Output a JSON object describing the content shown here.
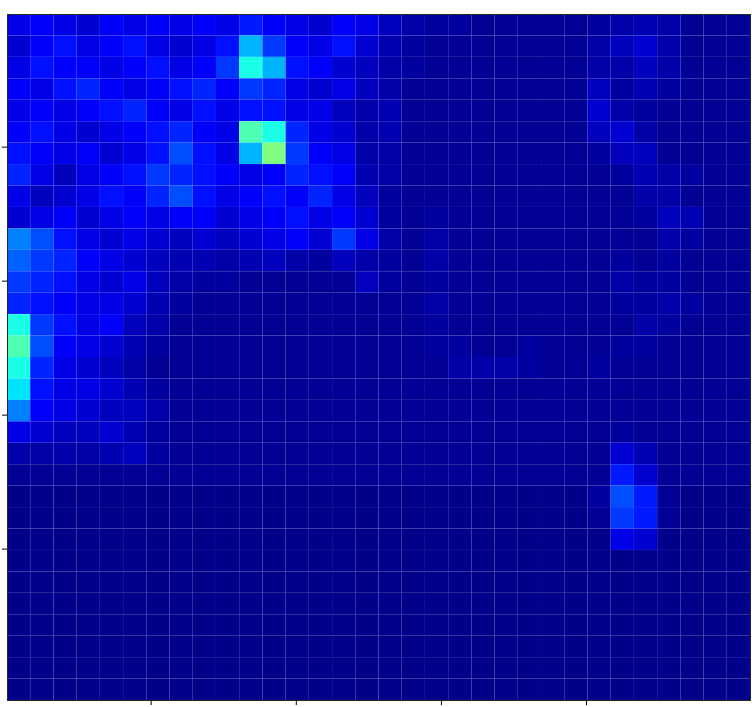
{
  "chart_data": {
    "type": "heatmap",
    "xlim": [
      0.5,
      256.5
    ],
    "ylim": [
      0.5,
      256.5
    ],
    "xticks": [
      50,
      100,
      150,
      200
    ],
    "yticks": [
      50,
      100,
      150,
      200
    ],
    "tick_labels": false,
    "clim": [
      0,
      1
    ],
    "cells": [
      [
        0.1,
        0.12,
        0.1,
        0.08,
        0.12,
        0.1,
        0.12,
        0.1,
        0.12,
        0.1,
        0.15,
        0.12,
        0.1,
        0.08,
        0.12,
        0.1,
        0.06,
        0.04,
        0.03,
        0.03,
        0.02,
        0.02,
        0.02,
        0.02,
        0.02,
        0.03,
        0.04,
        0.05,
        0.04,
        0.02,
        0.02,
        0.02
      ],
      [
        0.08,
        0.12,
        0.14,
        0.1,
        0.12,
        0.14,
        0.1,
        0.08,
        0.1,
        0.14,
        0.3,
        0.18,
        0.12,
        0.1,
        0.14,
        0.08,
        0.05,
        0.03,
        0.02,
        0.02,
        0.02,
        0.02,
        0.02,
        0.02,
        0.02,
        0.04,
        0.06,
        0.08,
        0.04,
        0.02,
        0.02,
        0.02
      ],
      [
        0.1,
        0.14,
        0.12,
        0.12,
        0.1,
        0.12,
        0.14,
        0.1,
        0.12,
        0.18,
        0.4,
        0.3,
        0.14,
        0.12,
        0.08,
        0.06,
        0.04,
        0.03,
        0.02,
        0.02,
        0.02,
        0.02,
        0.02,
        0.02,
        0.02,
        0.04,
        0.04,
        0.06,
        0.04,
        0.02,
        0.02,
        0.02
      ],
      [
        0.12,
        0.1,
        0.14,
        0.16,
        0.12,
        0.1,
        0.12,
        0.14,
        0.16,
        0.12,
        0.18,
        0.16,
        0.1,
        0.08,
        0.1,
        0.06,
        0.04,
        0.02,
        0.02,
        0.02,
        0.02,
        0.02,
        0.02,
        0.02,
        0.02,
        0.06,
        0.03,
        0.05,
        0.03,
        0.02,
        0.02,
        0.02
      ],
      [
        0.1,
        0.12,
        0.1,
        0.12,
        0.14,
        0.16,
        0.12,
        0.1,
        0.14,
        0.1,
        0.14,
        0.14,
        0.1,
        0.1,
        0.06,
        0.04,
        0.05,
        0.02,
        0.02,
        0.02,
        0.02,
        0.02,
        0.02,
        0.02,
        0.02,
        0.08,
        0.04,
        0.03,
        0.02,
        0.02,
        0.02,
        0.02
      ],
      [
        0.12,
        0.14,
        0.1,
        0.08,
        0.1,
        0.12,
        0.14,
        0.16,
        0.12,
        0.1,
        0.45,
        0.4,
        0.16,
        0.1,
        0.08,
        0.04,
        0.05,
        0.02,
        0.02,
        0.02,
        0.02,
        0.02,
        0.02,
        0.02,
        0.02,
        0.06,
        0.08,
        0.04,
        0.02,
        0.02,
        0.02,
        0.02
      ],
      [
        0.14,
        0.12,
        0.1,
        0.12,
        0.08,
        0.1,
        0.14,
        0.2,
        0.14,
        0.1,
        0.3,
        0.5,
        0.18,
        0.12,
        0.1,
        0.04,
        0.04,
        0.02,
        0.02,
        0.02,
        0.02,
        0.02,
        0.02,
        0.02,
        0.02,
        0.03,
        0.06,
        0.06,
        0.02,
        0.02,
        0.02,
        0.02
      ],
      [
        0.16,
        0.1,
        0.06,
        0.1,
        0.12,
        0.14,
        0.18,
        0.16,
        0.14,
        0.12,
        0.1,
        0.12,
        0.16,
        0.14,
        0.12,
        0.05,
        0.04,
        0.02,
        0.02,
        0.02,
        0.02,
        0.02,
        0.02,
        0.02,
        0.02,
        0.02,
        0.03,
        0.05,
        0.04,
        0.03,
        0.02,
        0.02
      ],
      [
        0.1,
        0.06,
        0.08,
        0.1,
        0.14,
        0.12,
        0.16,
        0.2,
        0.14,
        0.1,
        0.12,
        0.14,
        0.12,
        0.16,
        0.1,
        0.06,
        0.03,
        0.02,
        0.02,
        0.02,
        0.02,
        0.02,
        0.02,
        0.02,
        0.02,
        0.02,
        0.02,
        0.04,
        0.04,
        0.02,
        0.02,
        0.02
      ],
      [
        0.08,
        0.1,
        0.12,
        0.08,
        0.1,
        0.12,
        0.1,
        0.12,
        0.12,
        0.08,
        0.1,
        0.12,
        0.14,
        0.1,
        0.12,
        0.08,
        0.03,
        0.02,
        0.03,
        0.02,
        0.02,
        0.02,
        0.02,
        0.02,
        0.02,
        0.02,
        0.02,
        0.03,
        0.06,
        0.05,
        0.02,
        0.02
      ],
      [
        0.25,
        0.2,
        0.14,
        0.1,
        0.08,
        0.1,
        0.08,
        0.06,
        0.08,
        0.06,
        0.08,
        0.1,
        0.12,
        0.08,
        0.18,
        0.1,
        0.04,
        0.02,
        0.04,
        0.02,
        0.02,
        0.02,
        0.02,
        0.02,
        0.02,
        0.02,
        0.02,
        0.02,
        0.04,
        0.03,
        0.02,
        0.02
      ],
      [
        0.22,
        0.18,
        0.16,
        0.12,
        0.1,
        0.08,
        0.06,
        0.05,
        0.05,
        0.04,
        0.05,
        0.06,
        0.04,
        0.03,
        0.06,
        0.04,
        0.03,
        0.02,
        0.04,
        0.02,
        0.02,
        0.02,
        0.02,
        0.02,
        0.02,
        0.02,
        0.03,
        0.02,
        0.03,
        0.02,
        0.02,
        0.02
      ],
      [
        0.18,
        0.16,
        0.14,
        0.1,
        0.08,
        0.1,
        0.06,
        0.04,
        0.03,
        0.03,
        0.02,
        0.02,
        0.02,
        0.02,
        0.02,
        0.06,
        0.03,
        0.02,
        0.03,
        0.02,
        0.02,
        0.02,
        0.02,
        0.02,
        0.02,
        0.02,
        0.04,
        0.03,
        0.03,
        0.02,
        0.02,
        0.02
      ],
      [
        0.16,
        0.14,
        0.12,
        0.1,
        0.1,
        0.08,
        0.05,
        0.03,
        0.02,
        0.02,
        0.02,
        0.02,
        0.02,
        0.02,
        0.02,
        0.02,
        0.02,
        0.02,
        0.04,
        0.02,
        0.02,
        0.02,
        0.02,
        0.02,
        0.02,
        0.02,
        0.03,
        0.03,
        0.04,
        0.03,
        0.02,
        0.02
      ],
      [
        0.4,
        0.18,
        0.14,
        0.1,
        0.12,
        0.06,
        0.04,
        0.02,
        0.02,
        0.02,
        0.02,
        0.02,
        0.02,
        0.02,
        0.02,
        0.02,
        0.02,
        0.02,
        0.03,
        0.02,
        0.02,
        0.02,
        0.02,
        0.02,
        0.02,
        0.02,
        0.02,
        0.04,
        0.03,
        0.02,
        0.02,
        0.02
      ],
      [
        0.45,
        0.2,
        0.12,
        0.1,
        0.08,
        0.05,
        0.03,
        0.02,
        0.02,
        0.02,
        0.02,
        0.02,
        0.02,
        0.02,
        0.02,
        0.02,
        0.02,
        0.02,
        0.03,
        0.03,
        0.02,
        0.02,
        0.03,
        0.02,
        0.02,
        0.02,
        0.03,
        0.03,
        0.02,
        0.02,
        0.02,
        0.02
      ],
      [
        0.4,
        0.16,
        0.1,
        0.08,
        0.06,
        0.04,
        0.02,
        0.02,
        0.02,
        0.02,
        0.02,
        0.02,
        0.02,
        0.02,
        0.02,
        0.02,
        0.02,
        0.02,
        0.02,
        0.04,
        0.04,
        0.04,
        0.03,
        0.02,
        0.02,
        0.03,
        0.02,
        0.02,
        0.02,
        0.02,
        0.02,
        0.02
      ],
      [
        0.35,
        0.14,
        0.1,
        0.1,
        0.08,
        0.05,
        0.03,
        0.02,
        0.02,
        0.02,
        0.02,
        0.02,
        0.02,
        0.02,
        0.02,
        0.02,
        0.02,
        0.02,
        0.02,
        0.02,
        0.02,
        0.02,
        0.02,
        0.02,
        0.02,
        0.02,
        0.02,
        0.02,
        0.02,
        0.02,
        0.02,
        0.02
      ],
      [
        0.25,
        0.12,
        0.1,
        0.08,
        0.06,
        0.06,
        0.04,
        0.02,
        0.02,
        0.02,
        0.02,
        0.02,
        0.02,
        0.02,
        0.02,
        0.02,
        0.02,
        0.02,
        0.02,
        0.02,
        0.02,
        0.02,
        0.02,
        0.02,
        0.02,
        0.02,
        0.02,
        0.02,
        0.02,
        0.02,
        0.02,
        0.02
      ],
      [
        0.1,
        0.08,
        0.06,
        0.06,
        0.08,
        0.05,
        0.03,
        0.02,
        0.02,
        0.02,
        0.02,
        0.02,
        0.02,
        0.02,
        0.02,
        0.02,
        0.02,
        0.02,
        0.02,
        0.02,
        0.02,
        0.02,
        0.02,
        0.02,
        0.02,
        0.02,
        0.03,
        0.02,
        0.02,
        0.02,
        0.02,
        0.02
      ],
      [
        0.04,
        0.04,
        0.04,
        0.04,
        0.05,
        0.06,
        0.03,
        0.02,
        0.02,
        0.02,
        0.02,
        0.02,
        0.02,
        0.02,
        0.02,
        0.02,
        0.02,
        0.02,
        0.02,
        0.02,
        0.02,
        0.02,
        0.02,
        0.02,
        0.02,
        0.02,
        0.08,
        0.05,
        0.02,
        0.02,
        0.02,
        0.02
      ],
      [
        0.02,
        0.02,
        0.02,
        0.02,
        0.02,
        0.02,
        0.02,
        0.02,
        0.02,
        0.02,
        0.02,
        0.02,
        0.02,
        0.02,
        0.02,
        0.02,
        0.02,
        0.02,
        0.02,
        0.02,
        0.02,
        0.02,
        0.02,
        0.02,
        0.02,
        0.02,
        0.15,
        0.08,
        0.02,
        0.02,
        0.02,
        0.02
      ],
      [
        0.01,
        0.01,
        0.01,
        0.01,
        0.01,
        0.01,
        0.01,
        0.01,
        0.01,
        0.01,
        0.01,
        0.01,
        0.01,
        0.01,
        0.01,
        0.01,
        0.01,
        0.01,
        0.01,
        0.01,
        0.01,
        0.01,
        0.01,
        0.01,
        0.01,
        0.03,
        0.2,
        0.15,
        0.02,
        0.01,
        0.01,
        0.01
      ],
      [
        0.01,
        0.01,
        0.01,
        0.01,
        0.01,
        0.01,
        0.01,
        0.01,
        0.01,
        0.01,
        0.01,
        0.01,
        0.01,
        0.01,
        0.01,
        0.01,
        0.01,
        0.01,
        0.01,
        0.01,
        0.01,
        0.01,
        0.01,
        0.01,
        0.01,
        0.02,
        0.18,
        0.15,
        0.02,
        0.01,
        0.01,
        0.01
      ],
      [
        0.01,
        0.01,
        0.01,
        0.01,
        0.01,
        0.01,
        0.01,
        0.01,
        0.01,
        0.01,
        0.01,
        0.01,
        0.01,
        0.01,
        0.01,
        0.01,
        0.01,
        0.01,
        0.01,
        0.01,
        0.01,
        0.01,
        0.01,
        0.01,
        0.01,
        0.01,
        0.1,
        0.08,
        0.01,
        0.01,
        0.01,
        0.01
      ],
      [
        0.01,
        0.01,
        0.01,
        0.01,
        0.01,
        0.01,
        0.01,
        0.01,
        0.01,
        0.01,
        0.01,
        0.01,
        0.01,
        0.01,
        0.01,
        0.01,
        0.01,
        0.01,
        0.01,
        0.01,
        0.01,
        0.01,
        0.01,
        0.01,
        0.01,
        0.01,
        0.01,
        0.01,
        0.01,
        0.01,
        0.01,
        0.01
      ],
      [
        0.01,
        0.01,
        0.01,
        0.01,
        0.01,
        0.01,
        0.01,
        0.01,
        0.01,
        0.01,
        0.01,
        0.01,
        0.01,
        0.01,
        0.01,
        0.01,
        0.01,
        0.01,
        0.01,
        0.01,
        0.01,
        0.01,
        0.01,
        0.01,
        0.01,
        0.01,
        0.01,
        0.01,
        0.01,
        0.01,
        0.01,
        0.01
      ],
      [
        0.01,
        0.01,
        0.01,
        0.01,
        0.01,
        0.01,
        0.01,
        0.01,
        0.01,
        0.01,
        0.01,
        0.01,
        0.01,
        0.01,
        0.01,
        0.01,
        0.01,
        0.01,
        0.01,
        0.01,
        0.01,
        0.01,
        0.01,
        0.01,
        0.01,
        0.01,
        0.01,
        0.01,
        0.01,
        0.01,
        0.01,
        0.01
      ],
      [
        0.01,
        0.01,
        0.01,
        0.01,
        0.01,
        0.01,
        0.01,
        0.01,
        0.01,
        0.01,
        0.01,
        0.01,
        0.01,
        0.01,
        0.01,
        0.01,
        0.01,
        0.01,
        0.01,
        0.01,
        0.01,
        0.01,
        0.01,
        0.01,
        0.01,
        0.01,
        0.01,
        0.01,
        0.01,
        0.01,
        0.01,
        0.01
      ],
      [
        0.01,
        0.01,
        0.01,
        0.01,
        0.01,
        0.01,
        0.01,
        0.01,
        0.01,
        0.01,
        0.01,
        0.01,
        0.01,
        0.01,
        0.01,
        0.01,
        0.01,
        0.01,
        0.01,
        0.01,
        0.01,
        0.01,
        0.01,
        0.01,
        0.01,
        0.01,
        0.01,
        0.01,
        0.01,
        0.01,
        0.01,
        0.01
      ],
      [
        0.01,
        0.01,
        0.01,
        0.01,
        0.01,
        0.01,
        0.01,
        0.01,
        0.01,
        0.01,
        0.01,
        0.01,
        0.01,
        0.01,
        0.01,
        0.01,
        0.01,
        0.01,
        0.01,
        0.01,
        0.01,
        0.01,
        0.01,
        0.01,
        0.01,
        0.01,
        0.01,
        0.01,
        0.01,
        0.01,
        0.01,
        0.01
      ],
      [
        0.01,
        0.01,
        0.01,
        0.01,
        0.01,
        0.01,
        0.01,
        0.01,
        0.01,
        0.01,
        0.01,
        0.01,
        0.01,
        0.01,
        0.01,
        0.01,
        0.01,
        0.01,
        0.01,
        0.01,
        0.01,
        0.01,
        0.01,
        0.01,
        0.01,
        0.01,
        0.01,
        0.01,
        0.01,
        0.01,
        0.01,
        0.01
      ]
    ]
  }
}
